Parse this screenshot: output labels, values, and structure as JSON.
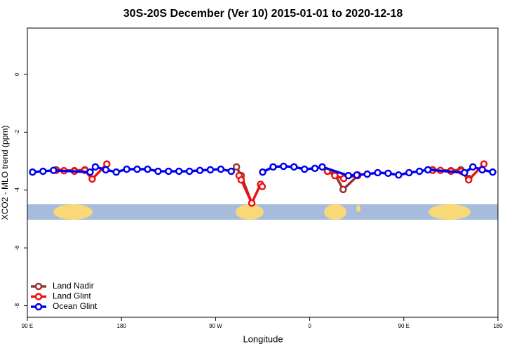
{
  "chart_data": {
    "type": "line",
    "title": "30S-20S December (Ver 10)   2015-01-01 to 2020-12-18",
    "xlabel": "Longitude",
    "ylabel": "XCO2 - MLO trend (ppm)",
    "xlim": [
      90,
      540
    ],
    "ylim": [
      -8.4,
      1.6
    ],
    "xticks": [
      {
        "value": 90,
        "label": "90 E"
      },
      180,
      {
        "value": 270,
        "label": "90 W"
      },
      {
        "value": 360,
        "label": "0"
      },
      {
        "value": 450,
        "label": "90 E"
      },
      {
        "value": 540,
        "label": "180"
      }
    ],
    "yticks": [
      0,
      -2,
      -4,
      -6,
      -8
    ],
    "legend": "lower left",
    "series": [
      {
        "name": "Land Nadir",
        "color": "#993333",
        "x": [
          117.5,
          135,
          145,
          null,
          290,
          294.5,
          304.6,
          null,
          377,
          384,
          392,
          406,
          null,
          477.6,
          495,
          504.5,
          512
        ],
        "values": [
          -3.3,
          -3.33,
          -3.3,
          null,
          -3.2,
          -3.5,
          -4.45,
          null,
          -3.35,
          -3.45,
          -3.98,
          -3.5,
          null,
          -3.3,
          -3.33,
          -3.3,
          -3.6
        ]
      },
      {
        "name": "Land Glint",
        "color": "#ee1111",
        "x": [
          117.5,
          125,
          135,
          145,
          152,
          166,
          null,
          292.5,
          294.5,
          304.6,
          313,
          314.6,
          null,
          377,
          384,
          392.5,
          406,
          null,
          477.6,
          485,
          495,
          505,
          512,
          526.6
        ],
        "values": [
          -3.32,
          -3.33,
          -3.35,
          -3.32,
          -3.62,
          -3.1,
          null,
          -3.5,
          -3.65,
          -4.45,
          -3.8,
          -3.88,
          null,
          -3.35,
          -3.5,
          -3.6,
          -3.48,
          null,
          -3.32,
          -3.32,
          -3.35,
          -3.35,
          -3.65,
          -3.1
        ]
      },
      {
        "name": "Ocean Glint",
        "color": "#0000ee",
        "x": [
          95,
          105,
          115,
          150,
          155,
          165,
          175,
          185,
          195,
          205,
          215,
          225,
          235,
          245,
          255,
          265,
          275,
          285,
          null,
          315,
          325,
          335,
          345,
          355,
          365,
          372,
          397,
          405,
          415,
          425,
          435,
          445,
          455,
          465,
          473,
          508,
          516,
          525,
          535
        ],
        "values": [
          -3.38,
          -3.35,
          -3.32,
          -3.38,
          -3.2,
          -3.3,
          -3.38,
          -3.28,
          -3.28,
          -3.28,
          -3.35,
          -3.35,
          -3.35,
          -3.35,
          -3.32,
          -3.3,
          -3.28,
          -3.35,
          null,
          -3.38,
          -3.2,
          -3.18,
          -3.2,
          -3.28,
          -3.25,
          -3.2,
          -3.5,
          -3.48,
          -3.45,
          -3.4,
          -3.42,
          -3.48,
          -3.4,
          -3.35,
          -3.3,
          -3.4,
          -3.2,
          -3.3,
          -3.38
        ]
      }
    ]
  }
}
